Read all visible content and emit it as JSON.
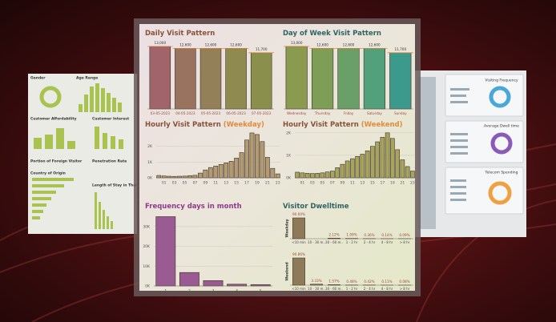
{
  "background": {
    "left_panels": [
      "Gender",
      "Age Range",
      "Customer Affordability",
      "Customer Interest",
      "Portion of Foreign Visitor",
      "Penetration Rate",
      "Country of Origin",
      "Length of Stay in Thailand"
    ],
    "right_panels": [
      "Visiting Frequency",
      "Average Dwell time",
      "Telecom Spending"
    ]
  },
  "chart_data": [
    {
      "type": "bar",
      "title": "Daily Visit Pattern",
      "title_color": "#8a5238",
      "categories": [
        "03-05-2023",
        "04-05-2023",
        "05-05-2023",
        "06-05-2023",
        "07-05-2023"
      ],
      "values": [
        13000,
        12600,
        12600,
        12600,
        11700
      ],
      "value_labels": [
        "13,000",
        "12,600",
        "12,600",
        "12,600",
        "11,700"
      ],
      "colors": [
        "#a0646a",
        "#9a7260",
        "#948058",
        "#8e8a50",
        "#8a904c"
      ]
    },
    {
      "type": "bar",
      "title": "Day of Week Visit Pattern",
      "title_color": "#2f6462",
      "categories": [
        "Wednesday",
        "Thursday",
        "Friday",
        "Saturday",
        "Sunday"
      ],
      "values": [
        13000,
        12600,
        12600,
        12600,
        11700
      ],
      "value_labels": [
        "13,000",
        "12,600",
        "12,600",
        "12,600",
        "11,700"
      ],
      "colors": [
        "#8a9a4e",
        "#7e9e58",
        "#6aa068",
        "#52a07c",
        "#3c9a8c"
      ]
    },
    {
      "type": "bar",
      "title": "Hourly Visit Pattern",
      "title_suffix": "(Weekday)",
      "title_color": "#8a5238",
      "suffix_color": "#e08c3a",
      "categories": [
        null,
        "01",
        null,
        "03",
        null,
        "05",
        null,
        "07",
        null,
        "09",
        null,
        "11",
        null,
        "13",
        null,
        "15",
        null,
        "17",
        null,
        "19",
        null,
        "21",
        null,
        "23"
      ],
      "values": [
        150,
        120,
        100,
        90,
        100,
        110,
        140,
        160,
        300,
        500,
        650,
        750,
        850,
        950,
        1050,
        1250,
        1600,
        2400,
        2850,
        2750,
        2300,
        1300,
        600,
        250
      ],
      "color": "#b49a72",
      "ylim": [
        0,
        3000
      ],
      "yticks": [
        {
          "value": 0,
          "label": "0K"
        },
        {
          "value": 1000,
          "label": "1K"
        },
        {
          "value": 2000,
          "label": "2K"
        }
      ]
    },
    {
      "type": "bar",
      "title": "Hourly Visit Pattern",
      "title_suffix": "(Weekend)",
      "title_color": "#8a5238",
      "suffix_color": "#e08c3a",
      "categories": [
        null,
        "01",
        null,
        "03",
        null,
        "05",
        null,
        "07",
        null,
        "09",
        null,
        "11",
        null,
        "13",
        null,
        "15",
        null,
        "17",
        null,
        "19",
        null,
        "21",
        null,
        "23"
      ],
      "values": [
        250,
        220,
        200,
        190,
        200,
        220,
        260,
        300,
        450,
        600,
        750,
        850,
        950,
        1050,
        1200,
        1400,
        1600,
        1800,
        2000,
        1750,
        1250,
        800,
        500,
        300
      ],
      "color": "#a8a45e",
      "ylim": [
        0,
        2100
      ],
      "yticks": [
        {
          "value": 0,
          "label": "0K"
        },
        {
          "value": 1000,
          "label": "1K"
        },
        {
          "value": 2000,
          "label": "2K"
        }
      ]
    },
    {
      "type": "bar",
      "title": "Frequency days in month",
      "title_color": "#8e3a8c",
      "categories": [
        "1",
        "2",
        "3",
        "4",
        "5"
      ],
      "values": [
        35000,
        6800,
        2700,
        900,
        700
      ],
      "color": "#9a5a92",
      "ylim": [
        0,
        36000
      ],
      "yticks": [
        {
          "value": 0,
          "label": "0K"
        },
        {
          "value": 10000,
          "label": "10K"
        },
        {
          "value": 20000,
          "label": "20K"
        },
        {
          "value": 30000,
          "label": "30K"
        }
      ]
    },
    {
      "type": "faceted_bar",
      "title": "Visitor Dwelltime",
      "title_color": "#2f6462",
      "categories": [
        "<10 min",
        "10 - 30 m..",
        "30 - 60 m..",
        "1 - 2 hr",
        "2 - 4 hr",
        "4 - 8 hr",
        "> 8 hr"
      ],
      "series": [
        {
          "name": "Weekday",
          "color": "#8e7a58",
          "values": [
            90,
            null,
            2.12,
            1.09,
            0.36,
            0.14,
            0.09
          ],
          "value_labels": [
            "90.00%",
            null,
            "2.12%",
            "1.09%",
            "0.36%",
            "0.14%",
            "0.09%"
          ]
        },
        {
          "name": "Weekend",
          "color": "#8e7a58",
          "values": [
            90.86,
            3.33,
            1.57,
            0.48,
            0.42,
            0.11,
            0.08
          ],
          "value_labels": [
            "90.86%",
            "3.33%",
            "1.57%",
            "0.48%",
            "0.42%",
            "0.11%",
            "0.08%"
          ]
        }
      ]
    }
  ]
}
